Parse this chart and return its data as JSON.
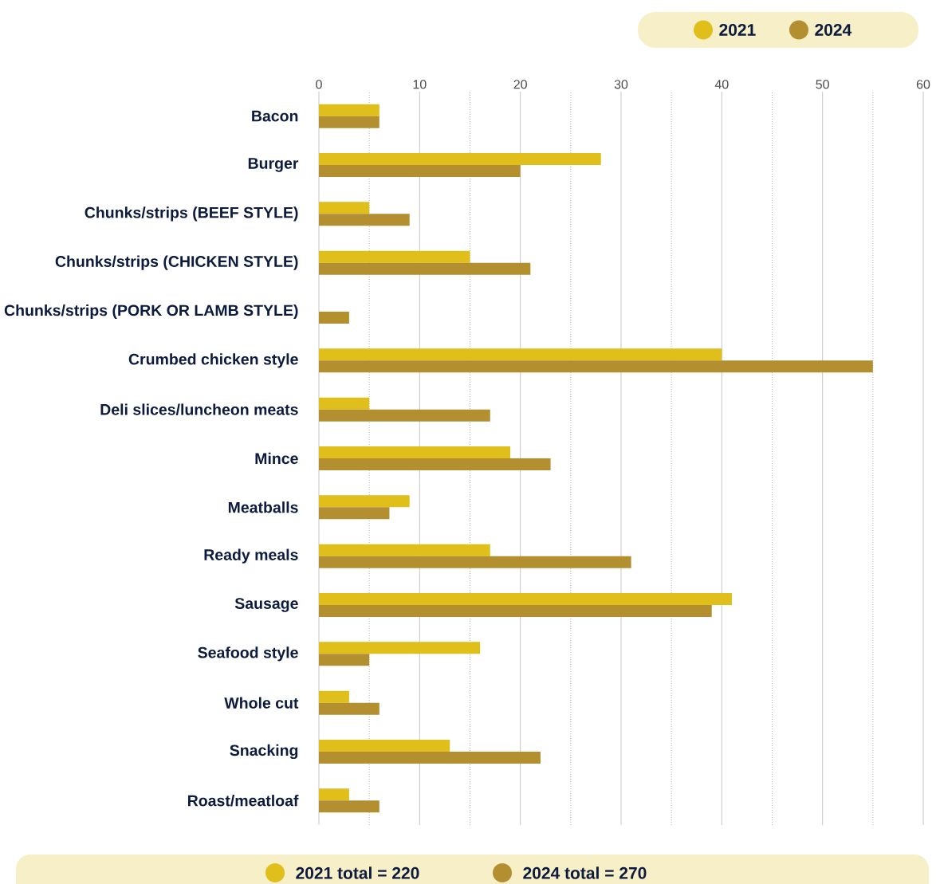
{
  "chart_data": {
    "type": "bar",
    "orientation": "horizontal",
    "categories": [
      "Bacon",
      "Burger",
      "Chunks/strips (BEEF STYLE)",
      "Chunks/strips (CHICKEN STYLE)",
      "Chunks/strips (PORK OR LAMB STYLE)",
      "Crumbed chicken style",
      "Deli slices/luncheon meats",
      "Mince",
      "Meatballs",
      "Ready meals",
      "Sausage",
      "Seafood style",
      "Whole cut",
      "Snacking",
      "Roast/meatloaf"
    ],
    "series": [
      {
        "name": "2021",
        "color": "#e0bf1a",
        "values": [
          6,
          28,
          5,
          15,
          0,
          40,
          5,
          19,
          9,
          17,
          41,
          16,
          3,
          13,
          3
        ]
      },
      {
        "name": "2024",
        "color": "#b38f30",
        "values": [
          6,
          20,
          9,
          21,
          3,
          55,
          17,
          23,
          7,
          31,
          39,
          5,
          6,
          22,
          6
        ]
      }
    ],
    "xlim": [
      0,
      60
    ],
    "xticks": [
      0,
      {
        "value": 5,
        "label": null
      },
      10,
      {
        "value": 15,
        "label": null
      },
      20,
      {
        "value": 25,
        "label": null
      },
      30,
      {
        "value": 35,
        "label": null
      },
      40,
      {
        "value": 45,
        "label": null
      },
      50,
      {
        "value": 55,
        "label": null
      },
      60
    ],
    "grid": "x",
    "legend": "top right",
    "annotations": [
      "2021 total = 220",
      "2024 total = 270"
    ]
  }
}
